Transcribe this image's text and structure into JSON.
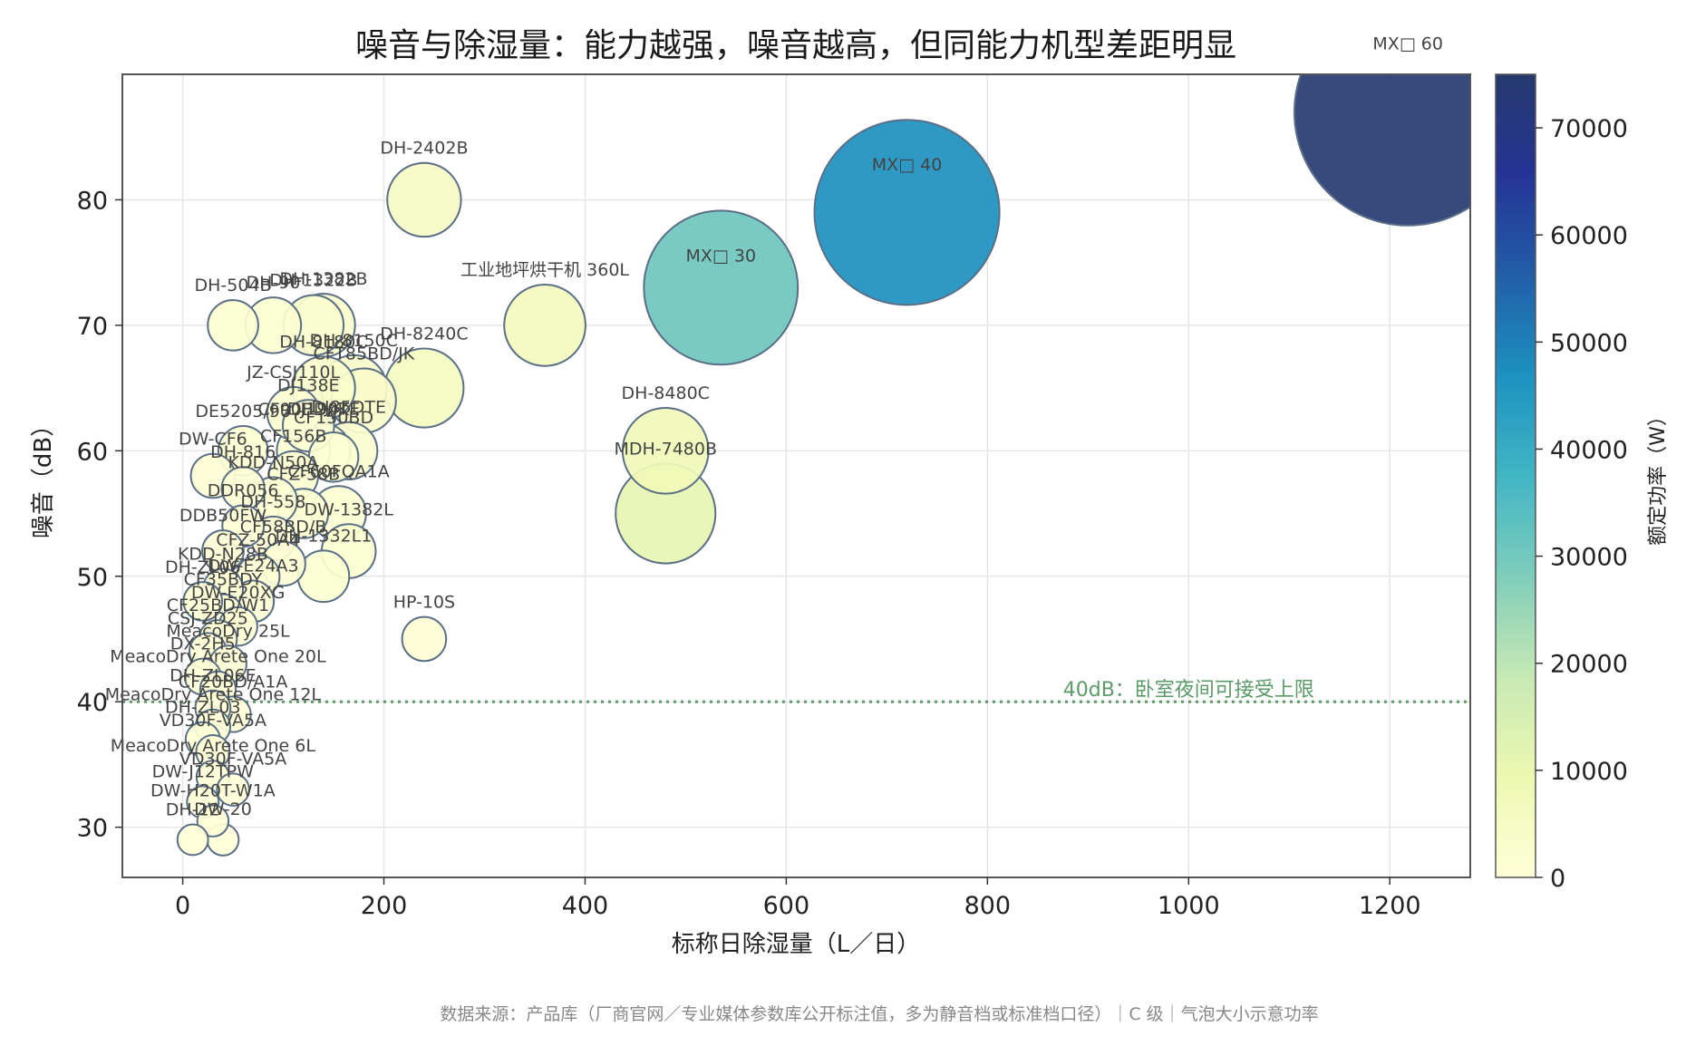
{
  "chart_data": {
    "type": "scatter",
    "title": "噪音与除湿量：能力越强，噪音越高，但同能力机型差距明显",
    "xlabel": "标称日除湿量（L／日）",
    "ylabel": "噪音（dB）",
    "xlim": [
      -60,
      1280
    ],
    "ylim": [
      26,
      90
    ],
    "xticks": [
      0,
      200,
      400,
      600,
      800,
      1000,
      1200
    ],
    "yticks": [
      30,
      40,
      50,
      60,
      70,
      80
    ],
    "grid": true,
    "colorbar": {
      "label": "额定功率（W）",
      "range": [
        0,
        75000
      ],
      "ticks": [
        0,
        10000,
        20000,
        30000,
        40000,
        50000,
        60000,
        70000
      ]
    },
    "reference_line": {
      "y": 40,
      "label": "40dB：卧室夜间可接受上限",
      "color": "#5b9a68"
    },
    "source_note": "数据来源：产品库（厂商官网／专业媒体参数库公开标注值，多为静音档或标准档口径）｜C 级｜气泡大小示意功率",
    "points": [
      {
        "x": 1218,
        "y": 87,
        "power": 74000,
        "label": "MX□ 60"
      },
      {
        "x": 720,
        "y": 79,
        "power": 47000,
        "label": "MX□ 40"
      },
      {
        "x": 535,
        "y": 73,
        "power": 31000,
        "label": "MX□ 30"
      },
      {
        "x": 240,
        "y": 80,
        "power": 5000,
        "label": "DH-2402B"
      },
      {
        "x": 360,
        "y": 70,
        "power": 6500,
        "label": "工业地坪烘干机 360L"
      },
      {
        "x": 480,
        "y": 60,
        "power": 7500,
        "label": "DH-8480C"
      },
      {
        "x": 480,
        "y": 55,
        "power": 11000,
        "label": "MDH-7480B"
      },
      {
        "x": 240,
        "y": 45,
        "power": 1000,
        "label": "HP-10S"
      },
      {
        "x": 240,
        "y": 65,
        "power": 6000,
        "label": "DH-8240C"
      },
      {
        "x": 50,
        "y": 70,
        "power": 1600,
        "label": "DH-504B"
      },
      {
        "x": 90,
        "y": 70,
        "power": 2200,
        "label": "DH-90"
      },
      {
        "x": 130,
        "y": 70,
        "power": 2800,
        "label": "DH-1322B"
      },
      {
        "x": 140,
        "y": 70,
        "power": 3200,
        "label": "DH-1382B"
      },
      {
        "x": 140,
        "y": 65,
        "power": 3200,
        "label": "DH-8180C"
      },
      {
        "x": 170,
        "y": 65,
        "power": 3600,
        "label": "DH-8150C"
      },
      {
        "x": 180,
        "y": 64,
        "power": 3400,
        "label": "CFT85BD/JK"
      },
      {
        "x": 110,
        "y": 63,
        "power": 1800,
        "label": "JZ-CSJ110L"
      },
      {
        "x": 125,
        "y": 62,
        "power": 1700,
        "label": "DJ138E"
      },
      {
        "x": 60,
        "y": 60,
        "power": 1500,
        "label": "DE5205/90"
      },
      {
        "x": 120,
        "y": 60,
        "power": 1900,
        "label": "CF90BD/JK"
      },
      {
        "x": 140,
        "y": 60,
        "power": 2000,
        "label": "DJ190TE"
      },
      {
        "x": 165,
        "y": 60,
        "power": 2400,
        "label": "DJ85DTE"
      },
      {
        "x": 150,
        "y": 59.5,
        "power": 1500,
        "label": "CF150BD"
      },
      {
        "x": 30,
        "y": 58,
        "power": 1000,
        "label": "DW-CF6"
      },
      {
        "x": 110,
        "y": 58,
        "power": 1500,
        "label": "CF156B"
      },
      {
        "x": 60,
        "y": 57,
        "power": 900,
        "label": "DH-816"
      },
      {
        "x": 90,
        "y": 56,
        "power": 1300,
        "label": "KDD-N50A"
      },
      {
        "x": 155,
        "y": 55,
        "power": 2100,
        "label": "CF60FQA1A"
      },
      {
        "x": 120,
        "y": 55,
        "power": 1500,
        "label": "CFZ-58B"
      },
      {
        "x": 60,
        "y": 54,
        "power": 800,
        "label": "DDR056"
      },
      {
        "x": 90,
        "y": 53,
        "power": 1000,
        "label": "DH-558"
      },
      {
        "x": 165,
        "y": 52,
        "power": 2000,
        "label": "DW-1382L"
      },
      {
        "x": 40,
        "y": 52,
        "power": 800,
        "label": "DDB50FW"
      },
      {
        "x": 100,
        "y": 51,
        "power": 1000,
        "label": "CF58BD/B"
      },
      {
        "x": 140,
        "y": 50,
        "power": 1700,
        "label": "DH-1332L1"
      },
      {
        "x": 75,
        "y": 50,
        "power": 900,
        "label": "CFZ-50A4"
      },
      {
        "x": 40,
        "y": 49,
        "power": 700,
        "label": "KDD-N28B"
      },
      {
        "x": 20,
        "y": 48,
        "power": 600,
        "label": "DH-ZL06"
      },
      {
        "x": 70,
        "y": 48,
        "power": 800,
        "label": "DW-E24A3"
      },
      {
        "x": 40,
        "y": 47,
        "power": 650,
        "label": "CF35BDY"
      },
      {
        "x": 55,
        "y": 46,
        "power": 600,
        "label": "DW-E20XG"
      },
      {
        "x": 35,
        "y": 45,
        "power": 550,
        "label": "CF25BD/W1"
      },
      {
        "x": 25,
        "y": 44,
        "power": 500,
        "label": "CSJ-ZD25"
      },
      {
        "x": 45,
        "y": 43,
        "power": 500,
        "label": "MeacoDry 25L"
      },
      {
        "x": 20,
        "y": 42,
        "power": 450,
        "label": "DX-2H5"
      },
      {
        "x": 35,
        "y": 41,
        "power": 420,
        "label": "MeacoDry Arete One 20L"
      },
      {
        "x": 30,
        "y": 39.5,
        "power": 400,
        "label": "DH-ZL06E"
      },
      {
        "x": 50,
        "y": 39,
        "power": 420,
        "label": "CF20BD/A1A"
      },
      {
        "x": 30,
        "y": 38,
        "power": 380,
        "label": "MeacoDry Arete One 12L"
      },
      {
        "x": 20,
        "y": 37,
        "power": 360,
        "label": "DH-ZL03"
      },
      {
        "x": 30,
        "y": 36,
        "power": 320,
        "label": "VD30F-VA5A"
      },
      {
        "x": 30,
        "y": 34,
        "power": 280,
        "label": "MeacoDry Arete One 6L"
      },
      {
        "x": 50,
        "y": 33,
        "power": 260,
        "label": "VD30F-VA5A"
      },
      {
        "x": 20,
        "y": 32,
        "power": 240,
        "label": "DW-J12TPW"
      },
      {
        "x": 30,
        "y": 30.5,
        "power": 220,
        "label": "DW-H20T-W1A"
      },
      {
        "x": 10,
        "y": 29,
        "power": 200,
        "label": "DH-12"
      },
      {
        "x": 40,
        "y": 29,
        "power": 230,
        "label": "DW-20"
      }
    ]
  }
}
